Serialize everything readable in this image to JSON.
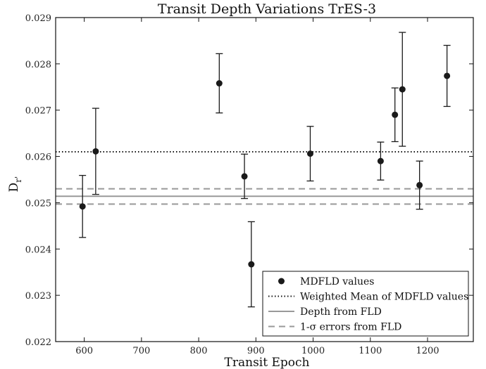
{
  "chart_data": {
    "type": "scatter",
    "title": "Transit Depth Variations TrES-3",
    "xlabel": "Transit Epoch",
    "ylabel": "D_r'",
    "xlim": [
      550,
      1280
    ],
    "ylim": [
      0.022,
      0.029
    ],
    "xticks": [
      600,
      700,
      800,
      900,
      1000,
      1100,
      1200
    ],
    "yticks": [
      0.022,
      0.023,
      0.024,
      0.025,
      0.026,
      0.027,
      0.028,
      0.029
    ],
    "xtick_labels": [
      "600",
      "700",
      "800",
      "900",
      "1000",
      "1100",
      "1200"
    ],
    "ytick_labels": [
      "0.022",
      "0.023",
      "0.024",
      "0.025",
      "0.026",
      "0.027",
      "0.028",
      "0.029"
    ],
    "grid": false,
    "legend_position": "bottom-right",
    "series": [
      {
        "name": "MDFLD values",
        "style": "points-with-errorbars",
        "color": "#1a1a1a",
        "points": [
          {
            "x": 597,
            "y": 0.02492,
            "err": 0.00067
          },
          {
            "x": 620,
            "y": 0.02611,
            "err": 0.00093
          },
          {
            "x": 836,
            "y": 0.02758,
            "err": 0.00064
          },
          {
            "x": 880,
            "y": 0.02557,
            "err": 0.00048
          },
          {
            "x": 892,
            "y": 0.02367,
            "err": 0.00092
          },
          {
            "x": 995,
            "y": 0.02606,
            "err": 0.00059
          },
          {
            "x": 1118,
            "y": 0.0259,
            "err": 0.00041
          },
          {
            "x": 1143,
            "y": 0.0269,
            "err": 0.00058
          },
          {
            "x": 1156,
            "y": 0.02745,
            "err": 0.00123
          },
          {
            "x": 1186,
            "y": 0.02538,
            "err": 0.00052
          },
          {
            "x": 1234,
            "y": 0.02774,
            "err": 0.00066
          }
        ]
      },
      {
        "name": "Weighted Mean of MDFLD values",
        "style": "dotted-hline",
        "color": "#111111",
        "y": 0.0261
      },
      {
        "name": "Depth from FLD",
        "style": "solid-hline",
        "color": "#999999",
        "y": 0.02514
      },
      {
        "name": "1-σ errors from FLD",
        "style": "dashed-hline",
        "color": "#999999",
        "y": [
          0.0253,
          0.02497
        ]
      }
    ]
  }
}
